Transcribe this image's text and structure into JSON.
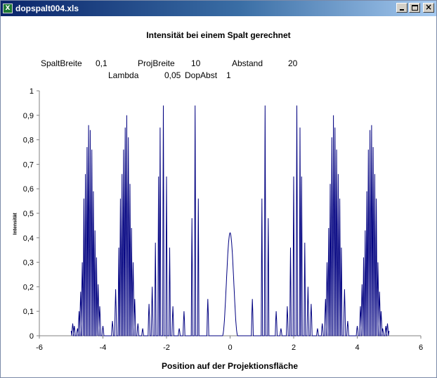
{
  "window": {
    "title": "dopspalt004.xls",
    "icon": "excel-icon"
  },
  "params": {
    "spaltbreite_label": "SpaltBreite",
    "spaltbreite_value": "0,1",
    "projbreite_label": "ProjBreite",
    "projbreite_value": "10",
    "abstand_label": "Abstand",
    "abstand_value": "20",
    "lambda_label": "Lambda",
    "lambda_value": "0,05",
    "dopabst_label": "DopAbst",
    "dopabst_value": "1"
  },
  "chart_data": {
    "type": "line",
    "title": "Intensität bei einem Spalt gerechnet",
    "xlabel": "Position auf der Projektionsfläche",
    "ylabel": "Intensität",
    "xlim": [
      -6,
      6
    ],
    "ylim": [
      0,
      1
    ],
    "x_ticks": [
      "-6",
      "-4",
      "-2",
      "0",
      "2",
      "4",
      "6"
    ],
    "y_ticks": [
      "0",
      "0,1",
      "0,2",
      "0,3",
      "0,4",
      "0,5",
      "0,6",
      "0,7",
      "0,8",
      "0,9",
      "1"
    ],
    "line_color": "#000080",
    "grid": false,
    "legend": "none",
    "series": [
      {
        "x_range": [
          -5,
          5
        ],
        "samples": 200,
        "peaks": [
          {
            "x": -4.95,
            "y": 0.05
          },
          {
            "x": -4.9,
            "y": 0.04
          },
          {
            "x": -4.8,
            "y": 0.03
          },
          {
            "x": -4.75,
            "y": 0.1
          },
          {
            "x": -4.7,
            "y": 0.18
          },
          {
            "x": -4.65,
            "y": 0.3
          },
          {
            "x": -4.6,
            "y": 0.56
          },
          {
            "x": -4.55,
            "y": 0.66
          },
          {
            "x": -4.5,
            "y": 0.77
          },
          {
            "x": -4.45,
            "y": 0.86
          },
          {
            "x": -4.4,
            "y": 0.84
          },
          {
            "x": -4.35,
            "y": 0.76
          },
          {
            "x": -4.3,
            "y": 0.59
          },
          {
            "x": -4.25,
            "y": 0.43
          },
          {
            "x": -4.2,
            "y": 0.32
          },
          {
            "x": -4.15,
            "y": 0.21
          },
          {
            "x": -4.1,
            "y": 0.12
          },
          {
            "x": -4.0,
            "y": 0.04
          },
          {
            "x": -3.7,
            "y": 0.06
          },
          {
            "x": -3.6,
            "y": 0.19
          },
          {
            "x": -3.5,
            "y": 0.36
          },
          {
            "x": -3.45,
            "y": 0.56
          },
          {
            "x": -3.4,
            "y": 0.66
          },
          {
            "x": -3.35,
            "y": 0.76
          },
          {
            "x": -3.3,
            "y": 0.85
          },
          {
            "x": -3.25,
            "y": 0.9
          },
          {
            "x": -3.2,
            "y": 0.81
          },
          {
            "x": -3.15,
            "y": 0.62
          },
          {
            "x": -3.1,
            "y": 0.44
          },
          {
            "x": -3.05,
            "y": 0.3
          },
          {
            "x": -3.0,
            "y": 0.15
          },
          {
            "x": -2.9,
            "y": 0.05
          },
          {
            "x": -2.75,
            "y": 0.03
          },
          {
            "x": -2.55,
            "y": 0.13
          },
          {
            "x": -2.45,
            "y": 0.2
          },
          {
            "x": -2.35,
            "y": 0.38
          },
          {
            "x": -2.25,
            "y": 0.65
          },
          {
            "x": -2.2,
            "y": 0.85
          },
          {
            "x": -2.1,
            "y": 0.94
          },
          {
            "x": -2.0,
            "y": 0.65
          },
          {
            "x": -1.9,
            "y": 0.36
          },
          {
            "x": -1.8,
            "y": 0.12
          },
          {
            "x": -1.6,
            "y": 0.03
          },
          {
            "x": -1.45,
            "y": 0.1
          },
          {
            "x": -1.2,
            "y": 0.48
          },
          {
            "x": -1.1,
            "y": 0.94
          },
          {
            "x": -1.0,
            "y": 0.56
          },
          {
            "x": -0.7,
            "y": 0.15
          },
          {
            "x": 0.0,
            "y": 0.42
          },
          {
            "x": 0.7,
            "y": 0.15
          },
          {
            "x": 1.0,
            "y": 0.56
          },
          {
            "x": 1.1,
            "y": 0.94
          },
          {
            "x": 1.2,
            "y": 0.48
          },
          {
            "x": 1.45,
            "y": 0.1
          },
          {
            "x": 1.6,
            "y": 0.03
          },
          {
            "x": 1.8,
            "y": 0.12
          },
          {
            "x": 1.9,
            "y": 0.36
          },
          {
            "x": 2.0,
            "y": 0.65
          },
          {
            "x": 2.1,
            "y": 0.94
          },
          {
            "x": 2.2,
            "y": 0.85
          },
          {
            "x": 2.25,
            "y": 0.65
          },
          {
            "x": 2.35,
            "y": 0.38
          },
          {
            "x": 2.45,
            "y": 0.2
          },
          {
            "x": 2.55,
            "y": 0.13
          },
          {
            "x": 2.75,
            "y": 0.03
          },
          {
            "x": 2.9,
            "y": 0.05
          },
          {
            "x": 3.0,
            "y": 0.15
          },
          {
            "x": 3.05,
            "y": 0.3
          },
          {
            "x": 3.1,
            "y": 0.44
          },
          {
            "x": 3.15,
            "y": 0.62
          },
          {
            "x": 3.2,
            "y": 0.81
          },
          {
            "x": 3.25,
            "y": 0.9
          },
          {
            "x": 3.3,
            "y": 0.85
          },
          {
            "x": 3.35,
            "y": 0.76
          },
          {
            "x": 3.4,
            "y": 0.66
          },
          {
            "x": 3.45,
            "y": 0.56
          },
          {
            "x": 3.5,
            "y": 0.36
          },
          {
            "x": 3.6,
            "y": 0.19
          },
          {
            "x": 3.7,
            "y": 0.06
          },
          {
            "x": 4.0,
            "y": 0.04
          },
          {
            "x": 4.1,
            "y": 0.12
          },
          {
            "x": 4.15,
            "y": 0.21
          },
          {
            "x": 4.2,
            "y": 0.32
          },
          {
            "x": 4.25,
            "y": 0.43
          },
          {
            "x": 4.3,
            "y": 0.59
          },
          {
            "x": 4.35,
            "y": 0.76
          },
          {
            "x": 4.4,
            "y": 0.84
          },
          {
            "x": 4.45,
            "y": 0.86
          },
          {
            "x": 4.5,
            "y": 0.77
          },
          {
            "x": 4.55,
            "y": 0.66
          },
          {
            "x": 4.6,
            "y": 0.56
          },
          {
            "x": 4.65,
            "y": 0.3
          },
          {
            "x": 4.7,
            "y": 0.18
          },
          {
            "x": 4.75,
            "y": 0.1
          },
          {
            "x": 4.8,
            "y": 0.03
          },
          {
            "x": 4.9,
            "y": 0.04
          },
          {
            "x": 4.95,
            "y": 0.05
          }
        ]
      }
    ]
  }
}
